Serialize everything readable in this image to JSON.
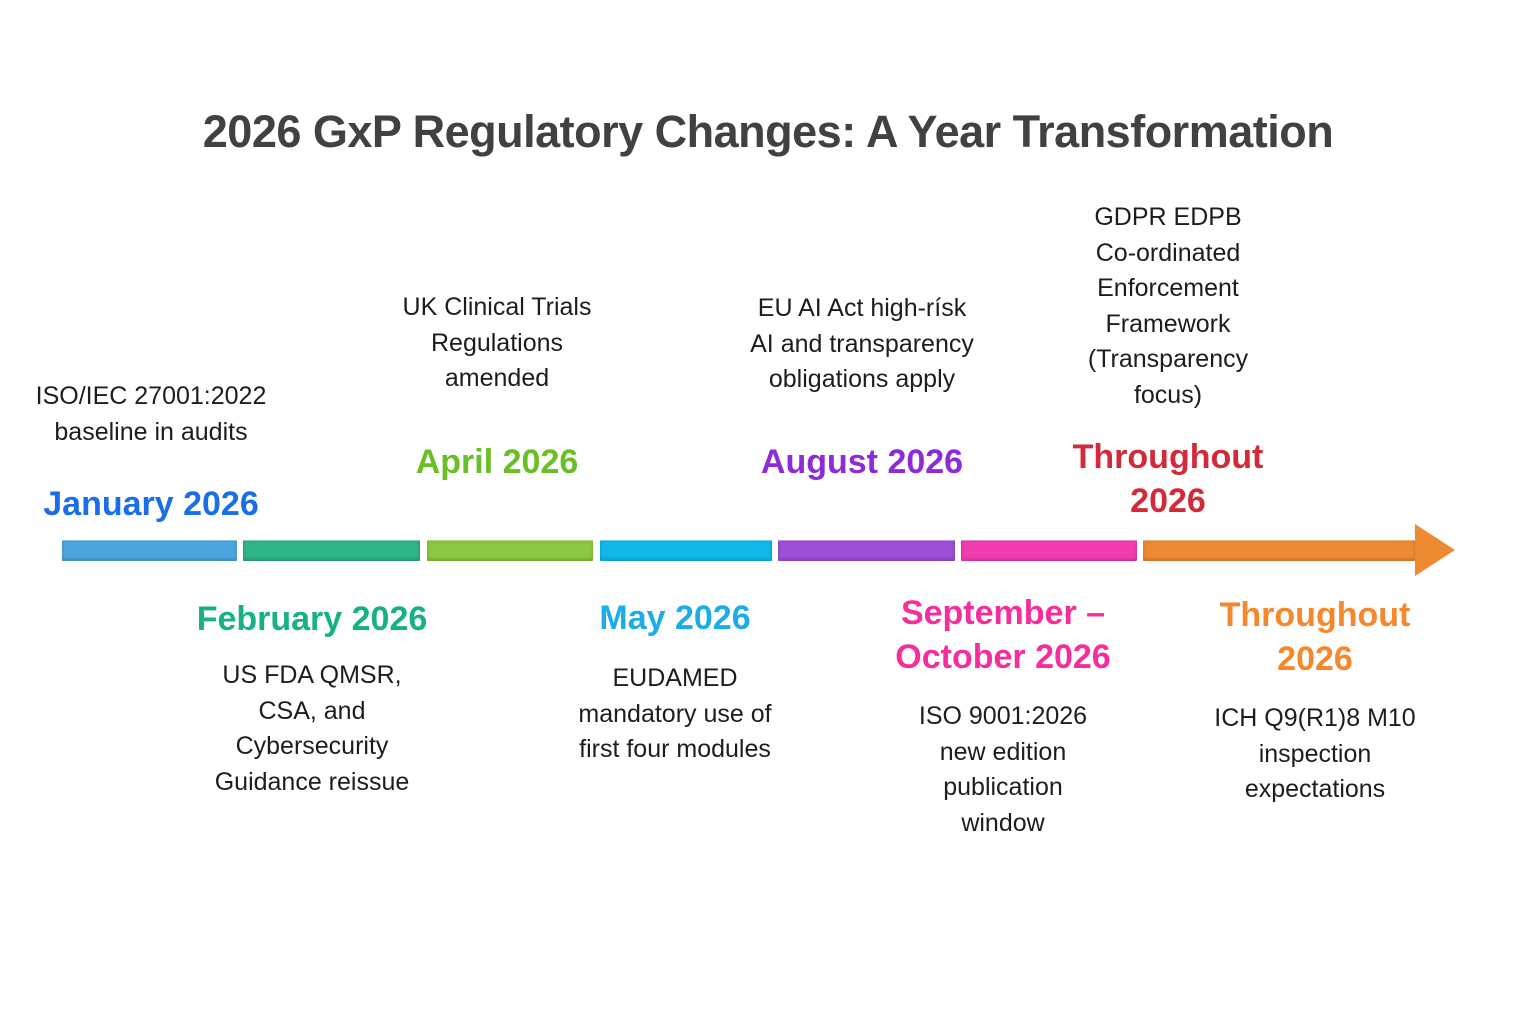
{
  "title": "2026 GxP Regulatory Changes: A Year Transformation",
  "events": [
    {
      "id": "january-2026",
      "side": "above",
      "label": "January 2026",
      "label_color": "#1a6fe8",
      "description": "ISO/IEC 27001:2022\nbaseline in audits",
      "segment_color": "#4aa5de"
    },
    {
      "id": "february-2026",
      "side": "below",
      "label": "February 2026",
      "label_color": "#16b185",
      "description": "US FDA QMSR,\nCSA, and\nCybersecurity\nGuidance reissue",
      "segment_color": "#2eb489"
    },
    {
      "id": "april-2026",
      "side": "above",
      "label": "April 2026",
      "label_color": "#6abe26",
      "description": "UK Clinical Trials\nRegulations\namended",
      "segment_color": "#8cc740"
    },
    {
      "id": "may-2026",
      "side": "below",
      "label": "May 2026",
      "label_color": "#1aade8",
      "description": "EUDAMED\nmandatory use of\nfirst four modules",
      "segment_color": "#0fb8e9"
    },
    {
      "id": "august-2026",
      "side": "above",
      "label": "August 2026",
      "label_color": "#8d2ad9",
      "description": "EU AI Act high-rísk\nAI and transparency\nobligations apply",
      "segment_color": "#9c50d8"
    },
    {
      "id": "september-october-2026",
      "side": "below",
      "label": "September –\nOctober 2026",
      "label_color": "#f62d9d",
      "description": "ISO 9001:2026\nnew edition\npublication\nwindow",
      "segment_color": "#f03cae"
    },
    {
      "id": "throughout-2026-gdpr",
      "side": "above",
      "label": "Throughout\n2026",
      "label_color": "#d32a3a",
      "description": "GDPR EDPB\nCo-ordinated\nEnforcement\nFramework\n(Transparency\nfocus)"
    },
    {
      "id": "throughout-2026-ich",
      "side": "below",
      "label": "Throughout\n2026",
      "label_color": "#f6872b",
      "description": "ICH Q9(R1)8 M10\ninspection\nexpectations",
      "segment_color": "#ee8a31"
    }
  ]
}
